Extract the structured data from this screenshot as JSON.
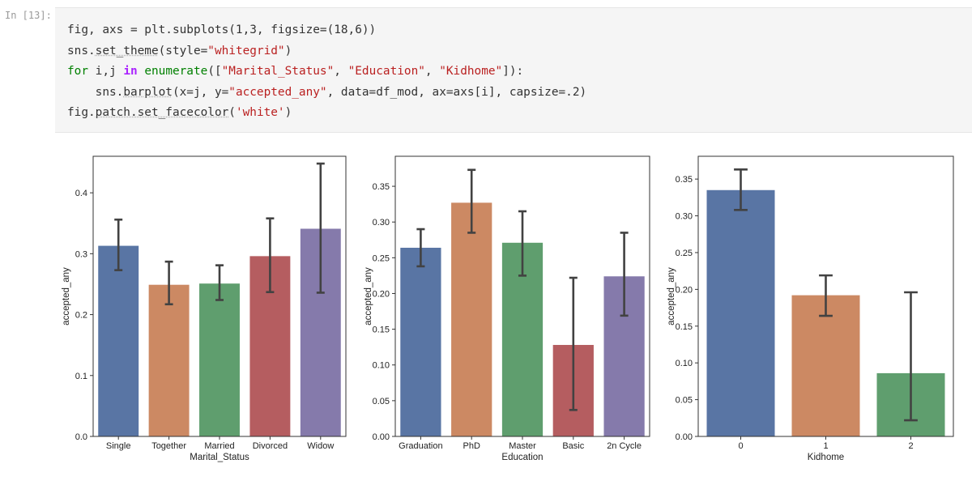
{
  "prompt": "In [13]:",
  "code": {
    "line1": "fig, axs = plt.subplots(1,3, figsize=(18,6))",
    "line2_a": "sns.",
    "line2_b": "set_theme",
    "line2_c": "(style=",
    "line2_d": "\"whitegrid\"",
    "line2_e": ")",
    "line3_a": "for",
    "line3_b": " i,j ",
    "line3_c": "in",
    "line3_d": " ",
    "line3_e": "enumerate",
    "line3_f": "([",
    "line3_g": "\"Marital_Status\"",
    "line3_h": ", ",
    "line3_i": "\"Education\"",
    "line3_j": ", ",
    "line3_k": "\"Kidhome\"",
    "line3_l": "]):",
    "line4_a": "    sns.",
    "line4_b": "barplot",
    "line4_c": "(x=j, y=",
    "line4_d": "\"accepted_any\"",
    "line4_e": ", data=df_mod, ax=axs[i], capsize=.2)",
    "line5_a": "fig.",
    "line5_b": "patch.set_facecolor",
    "line5_c": "(",
    "line5_d": "'white'",
    "line5_e": ")"
  },
  "colors": {
    "palette": [
      "#5975a4",
      "#cc8963",
      "#5f9e6e",
      "#b55d60",
      "#857aab"
    ],
    "errorbar": "#424242",
    "axes": "#333333"
  },
  "chart_data": [
    {
      "type": "bar",
      "categories": [
        "Single",
        "Together",
        "Married",
        "Divorced",
        "Widow"
      ],
      "values": [
        0.313,
        0.249,
        0.251,
        0.296,
        0.341
      ],
      "ci_low": [
        0.273,
        0.217,
        0.224,
        0.237,
        0.236
      ],
      "ci_high": [
        0.356,
        0.287,
        0.281,
        0.358,
        0.448
      ],
      "xlabel": "Marital_Status",
      "ylabel": "accepted_any",
      "ylim": [
        0,
        0.46
      ],
      "yticks": [
        0.0,
        0.1,
        0.2,
        0.3,
        0.4
      ],
      "ytick_labels": [
        "0.0",
        "0.1",
        "0.2",
        "0.3",
        "0.4"
      ],
      "grid": false
    },
    {
      "type": "bar",
      "categories": [
        "Graduation",
        "PhD",
        "Master",
        "Basic",
        "2n Cycle"
      ],
      "values": [
        0.264,
        0.327,
        0.271,
        0.128,
        0.224
      ],
      "ci_low": [
        0.238,
        0.285,
        0.225,
        0.037,
        0.169
      ],
      "ci_high": [
        0.29,
        0.373,
        0.315,
        0.222,
        0.285
      ],
      "xlabel": "Education",
      "ylabel": "accepted_any",
      "ylim": [
        0,
        0.392
      ],
      "yticks": [
        0.0,
        0.05,
        0.1,
        0.15,
        0.2,
        0.25,
        0.3,
        0.35
      ],
      "ytick_labels": [
        "0.00",
        "0.05",
        "0.10",
        "0.15",
        "0.20",
        "0.25",
        "0.30",
        "0.35"
      ],
      "grid": false
    },
    {
      "type": "bar",
      "categories": [
        "0",
        "1",
        "2"
      ],
      "values": [
        0.335,
        0.192,
        0.086
      ],
      "ci_low": [
        0.308,
        0.164,
        0.022
      ],
      "ci_high": [
        0.363,
        0.219,
        0.196
      ],
      "xlabel": "Kidhome",
      "ylabel": "accepted_any",
      "ylim": [
        0,
        0.381
      ],
      "yticks": [
        0.0,
        0.05,
        0.1,
        0.15,
        0.2,
        0.25,
        0.3,
        0.35
      ],
      "ytick_labels": [
        "0.00",
        "0.05",
        "0.10",
        "0.15",
        "0.20",
        "0.25",
        "0.30",
        "0.35"
      ],
      "grid": false
    }
  ]
}
